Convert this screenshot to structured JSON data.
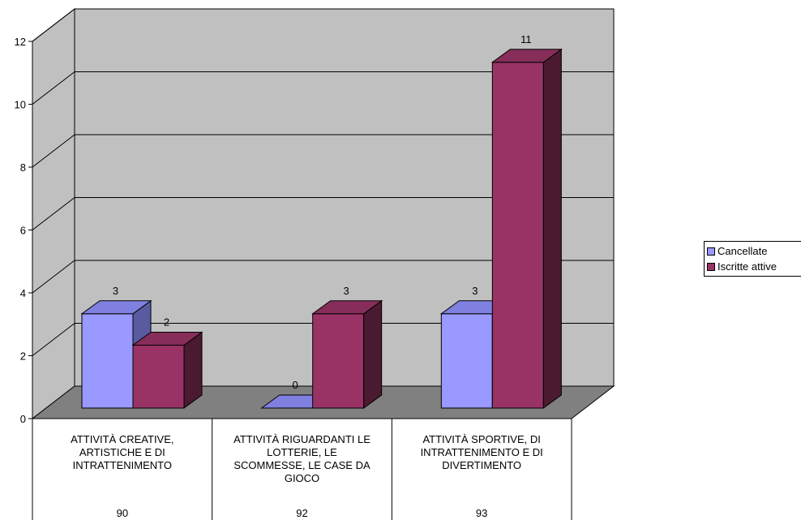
{
  "chart_data": {
    "type": "bar",
    "categories": [
      "ATTIVITÀ CREATIVE, ARTISTICHE E DI INTRATTENIMENTO",
      "ATTIVITÀ RIGUARDANTI LE LOTTERIE, LE SCOMMESSE, LE CASE DA GIOCO",
      "ATTIVITÀ SPORTIVE, DI INTRATTENIMENTO E DI DIVERTIMENTO"
    ],
    "category_lines": [
      [
        "ATTIVITÀ CREATIVE,",
        "ARTISTICHE E DI",
        "INTRATTENIMENTO"
      ],
      [
        "ATTIVITÀ RIGUARDANTI LE",
        "LOTTERIE, LE",
        "SCOMMESSE, LE CASE DA",
        "GIOCO"
      ],
      [
        "ATTIVITÀ SPORTIVE, DI",
        "INTRATTENIMENTO E DI",
        "DIVERTIMENTO"
      ]
    ],
    "category_codes": [
      "90",
      "92",
      "93"
    ],
    "series": [
      {
        "name": "Cancellate",
        "values": [
          3,
          0,
          3
        ],
        "color": "#9999FF",
        "top_color": "#8080E0",
        "side_color": "#5A5AA0"
      },
      {
        "name": "Iscritte attive",
        "values": [
          2,
          3,
          11
        ],
        "color": "#993366",
        "top_color": "#862D59",
        "side_color": "#4A1A30"
      }
    ],
    "yticks": [
      0,
      2,
      4,
      6,
      8,
      10,
      12
    ],
    "ylim": [
      0,
      12
    ],
    "grid": true,
    "legend_position": "right",
    "wall_color": "#C0C0C0",
    "floor_color": "#808080"
  }
}
